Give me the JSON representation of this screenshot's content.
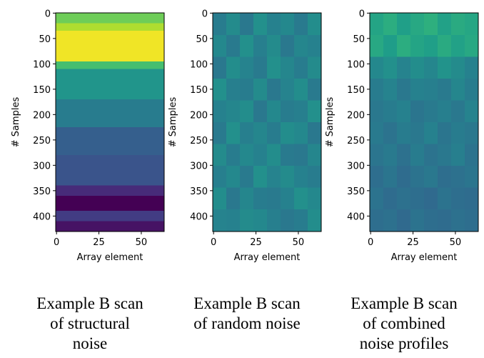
{
  "chart_data": [
    {
      "type": "heatmap",
      "xlabel": "Array element",
      "ylabel": "# Samples",
      "colormap": "viridis",
      "vlim": [
        0,
        1
      ],
      "xlim": [
        -0.5,
        63.5
      ],
      "ylim": [
        -0.5,
        430.5
      ],
      "y_inverted": true,
      "xticks": [
        0,
        25,
        50
      ],
      "yticks": [
        0,
        50,
        100,
        150,
        200,
        250,
        300,
        350,
        400
      ],
      "x_edges": [
        -0.5,
        63.5
      ],
      "y_edges": [
        -0.5,
        20,
        35,
        95,
        110,
        170,
        225,
        280,
        340,
        360,
        390,
        410,
        430.5
      ],
      "z": [
        [
          0.78
        ],
        [
          0.88
        ],
        [
          0.98
        ],
        [
          0.7
        ],
        [
          0.52
        ],
        [
          0.42
        ],
        [
          0.3
        ],
        [
          0.26
        ],
        [
          0.12
        ],
        [
          0.0
        ],
        [
          0.18
        ],
        [
          0.05
        ]
      ],
      "caption": [
        "Example B scan",
        "of structural",
        "noise"
      ]
    },
    {
      "type": "heatmap",
      "xlabel": "Array element",
      "ylabel": "# Samples",
      "colormap": "viridis",
      "vlim": [
        0,
        1
      ],
      "xlim": [
        -0.5,
        63.5
      ],
      "ylim": [
        -0.5,
        430.5
      ],
      "y_inverted": true,
      "xticks": [
        0,
        25,
        50
      ],
      "yticks": [
        0,
        50,
        100,
        150,
        200,
        250,
        300,
        350,
        400
      ],
      "x_edges": [
        -0.5,
        7.5,
        15.5,
        23.5,
        31.5,
        39.5,
        47.5,
        55.5,
        63.5
      ],
      "y_edges": [
        -0.5,
        43,
        86,
        129,
        172,
        215,
        258,
        301,
        344,
        387,
        430.5
      ],
      "z": [
        [
          0.42,
          0.48,
          0.4,
          0.5,
          0.44,
          0.47,
          0.41,
          0.49
        ],
        [
          0.47,
          0.41,
          0.5,
          0.43,
          0.48,
          0.4,
          0.46,
          0.44
        ],
        [
          0.4,
          0.49,
          0.45,
          0.41,
          0.5,
          0.46,
          0.42,
          0.48
        ],
        [
          0.5,
          0.43,
          0.42,
          0.48,
          0.4,
          0.45,
          0.49,
          0.41
        ],
        [
          0.44,
          0.46,
          0.49,
          0.4,
          0.47,
          0.42,
          0.43,
          0.5
        ],
        [
          0.41,
          0.5,
          0.43,
          0.46,
          0.42,
          0.49,
          0.47,
          0.4
        ],
        [
          0.48,
          0.42,
          0.47,
          0.44,
          0.49,
          0.41,
          0.4,
          0.46
        ],
        [
          0.43,
          0.47,
          0.41,
          0.5,
          0.45,
          0.48,
          0.44,
          0.42
        ],
        [
          0.49,
          0.4,
          0.46,
          0.42,
          0.41,
          0.44,
          0.5,
          0.47
        ],
        [
          0.45,
          0.44,
          0.48,
          0.47,
          0.43,
          0.4,
          0.42,
          0.49
        ]
      ],
      "caption": [
        "Example B scan",
        "of random noise"
      ]
    },
    {
      "type": "heatmap",
      "xlabel": "Array element",
      "ylabel": "# Samples",
      "colormap": "viridis",
      "vlim": [
        0,
        1
      ],
      "xlim": [
        -0.5,
        63.5
      ],
      "ylim": [
        -0.5,
        430.5
      ],
      "y_inverted": true,
      "xticks": [
        0,
        25,
        50
      ],
      "yticks": [
        0,
        50,
        100,
        150,
        200,
        250,
        300,
        350,
        400
      ],
      "x_edges": [
        -0.5,
        7.5,
        15.5,
        23.5,
        31.5,
        39.5,
        47.5,
        55.5,
        63.5
      ],
      "y_edges": [
        -0.5,
        43,
        86,
        129,
        172,
        215,
        258,
        301,
        344,
        387,
        430.5
      ],
      "z": [
        [
          0.58,
          0.62,
          0.56,
          0.6,
          0.63,
          0.57,
          0.61,
          0.59
        ],
        [
          0.6,
          0.55,
          0.62,
          0.58,
          0.56,
          0.61,
          0.57,
          0.6
        ],
        [
          0.47,
          0.5,
          0.45,
          0.49,
          0.46,
          0.51,
          0.48,
          0.44
        ],
        [
          0.42,
          0.45,
          0.4,
          0.44,
          0.43,
          0.41,
          0.46,
          0.42
        ],
        [
          0.4,
          0.42,
          0.44,
          0.39,
          0.41,
          0.43,
          0.4,
          0.45
        ],
        [
          0.41,
          0.38,
          0.42,
          0.4,
          0.44,
          0.39,
          0.42,
          0.4
        ],
        [
          0.39,
          0.41,
          0.37,
          0.42,
          0.38,
          0.4,
          0.43,
          0.38
        ],
        [
          0.36,
          0.39,
          0.35,
          0.38,
          0.4,
          0.36,
          0.37,
          0.39
        ],
        [
          0.38,
          0.35,
          0.37,
          0.36,
          0.34,
          0.38,
          0.36,
          0.35
        ],
        [
          0.36,
          0.37,
          0.34,
          0.38,
          0.36,
          0.35,
          0.37,
          0.36
        ]
      ],
      "caption": [
        "Example B scan",
        "of combined",
        "noise profiles"
      ]
    }
  ]
}
